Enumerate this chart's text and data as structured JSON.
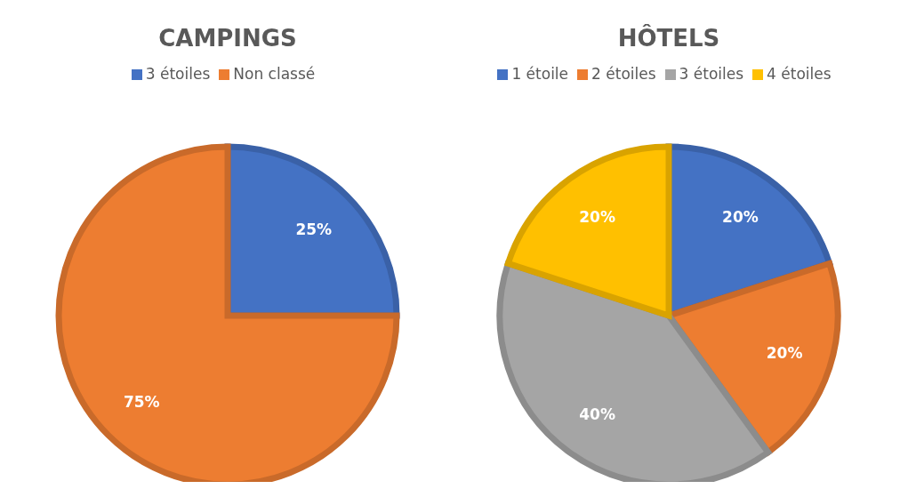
{
  "chart_data": [
    {
      "type": "pie",
      "title": "CAMPINGS",
      "categories": [
        "3 étoiles",
        "Non classé"
      ],
      "values": [
        25,
        75
      ],
      "colors": [
        "#4472c4",
        "#ed7d31"
      ],
      "value_labels": [
        "25%",
        "75%"
      ],
      "legend": "top"
    },
    {
      "type": "pie",
      "title": "HÔTELS",
      "categories": [
        "1 étoile",
        "2 étoiles",
        "3 étoiles",
        "4 étoiles"
      ],
      "values": [
        20,
        20,
        40,
        20
      ],
      "colors": [
        "#4472c4",
        "#ed7d31",
        "#a5a5a5",
        "#ffc000"
      ],
      "value_labels": [
        "20%",
        "20%",
        "40%",
        "20%"
      ],
      "legend": "top"
    }
  ]
}
